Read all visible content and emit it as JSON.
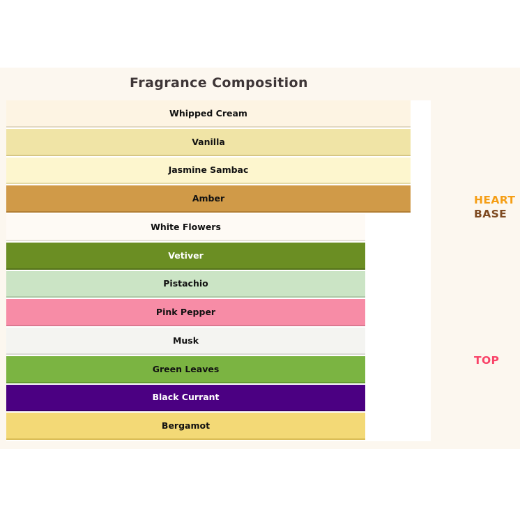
{
  "title": {
    "text": "Fragrance Composition",
    "color": "#3E3637"
  },
  "figure": {
    "background": "#FCF7EF"
  },
  "plot": {
    "background": "#FFFFFF"
  },
  "side_labels": [
    {
      "id": "heart",
      "text": "HEART",
      "color": "#F59E15"
    },
    {
      "id": "base",
      "text": "BASE",
      "color": "#7E4A21"
    },
    {
      "id": "top",
      "text": "TOP",
      "color": "#F94368"
    }
  ],
  "bars": [
    {
      "label": "Whipped Cream",
      "value": 0.953,
      "color": "#FDF4E3",
      "edge_color": "#E2D8C2",
      "text_color": "#111111"
    },
    {
      "label": "Vanilla",
      "value": 0.953,
      "color": "#F0E4A6",
      "edge_color": "#D6C685",
      "text_color": "#111111"
    },
    {
      "label": "Jasmine Sambac",
      "value": 0.953,
      "color": "#FDF6CE",
      "edge_color": "#E3D9A5",
      "text_color": "#111111"
    },
    {
      "label": "Amber",
      "value": 0.953,
      "color": "#D09A48",
      "edge_color": "#B27E33",
      "text_color": "#111111"
    },
    {
      "label": "White Flowers",
      "value": 0.845,
      "color": "#FEFAF5",
      "edge_color": "#E5DFD7",
      "text_color": "#111111"
    },
    {
      "label": "Vetiver",
      "value": 0.845,
      "color": "#6B8E23",
      "edge_color": "#55731A",
      "text_color": "#FFFFFF"
    },
    {
      "label": "Pistachio",
      "value": 0.845,
      "color": "#CBE4C5",
      "edge_color": "#ADC7A6",
      "text_color": "#111111"
    },
    {
      "label": "Pink Pepper",
      "value": 0.845,
      "color": "#F78CA6",
      "edge_color": "#DB7890",
      "text_color": "#111111"
    },
    {
      "label": "Musk",
      "value": 0.845,
      "color": "#F4F4F1",
      "edge_color": "#D9D9D4",
      "text_color": "#111111"
    },
    {
      "label": "Green Leaves",
      "value": 0.845,
      "color": "#7BB442",
      "edge_color": "#659A34",
      "text_color": "#111111"
    },
    {
      "label": "Black Currant",
      "value": 0.845,
      "color": "#4B0082",
      "edge_color": "#3A0066",
      "text_color": "#FFFFFF"
    },
    {
      "label": "Bergamot",
      "value": 0.845,
      "color": "#F3D976",
      "edge_color": "#D9BC55",
      "text_color": "#111111"
    }
  ],
  "chart_data": {
    "type": "bar",
    "orientation": "horizontal",
    "title": "Fragrance Composition",
    "categories": [
      "Whipped Cream",
      "Vanilla",
      "Jasmine Sambac",
      "Amber",
      "White Flowers",
      "Vetiver",
      "Pistachio",
      "Pink Pepper",
      "Musk",
      "Green Leaves",
      "Black Currant",
      "Bergamot"
    ],
    "values": [
      0.953,
      0.953,
      0.953,
      0.953,
      0.845,
      0.845,
      0.845,
      0.845,
      0.845,
      0.845,
      0.845,
      0.845
    ],
    "xlim": [
      0,
      1
    ],
    "bar_colors": [
      "#FDF4E3",
      "#F0E4A6",
      "#FDF6CE",
      "#D09A48",
      "#FEFAF5",
      "#6B8E23",
      "#CBE4C5",
      "#F78CA6",
      "#F4F4F1",
      "#7BB442",
      "#4B0082",
      "#F3D976"
    ],
    "bar_labels_inside": true,
    "axes_visible": false,
    "grid": false,
    "legend": false,
    "annotations": [
      {
        "text": "HEART",
        "color": "#F59E15",
        "position": "right-of-row-4"
      },
      {
        "text": "BASE",
        "color": "#7E4A21",
        "position": "right-of-row-4-5-boundary"
      },
      {
        "text": "TOP",
        "color": "#F94368",
        "position": "right-of-row-10"
      }
    ]
  }
}
